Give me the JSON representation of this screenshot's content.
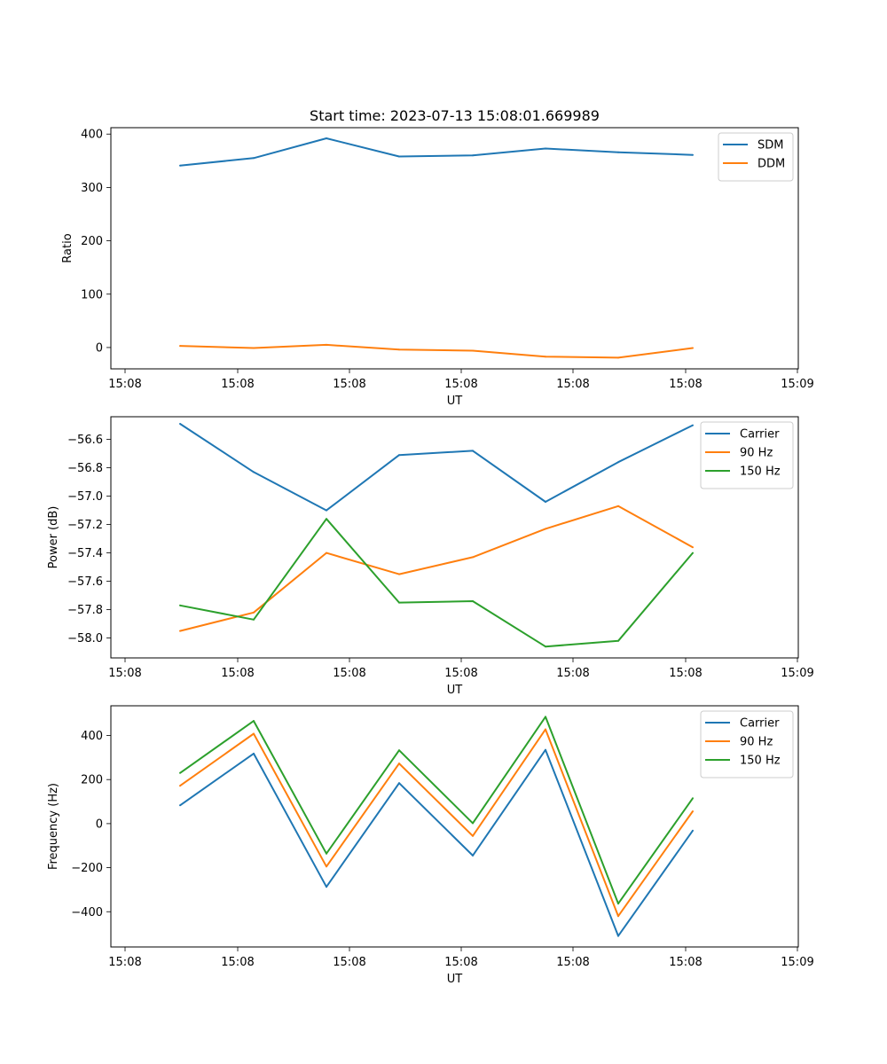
{
  "chart_data": [
    {
      "type": "line",
      "title": "Start time: 2023-07-13 15:08:01.669989",
      "xlabel": "UT",
      "ylabel": "Ratio",
      "x_tick_labels": [
        "15:08",
        "15:08",
        "15:08",
        "15:08",
        "15:08",
        "15:08",
        "15:09"
      ],
      "y_ticks": [
        0,
        100,
        200,
        300,
        400
      ],
      "ylim": [
        -40,
        412
      ],
      "legend_position": "top-right",
      "series": [
        {
          "name": "SDM",
          "color": "#1f77b4",
          "values": [
            341,
            355,
            392,
            358,
            360,
            373,
            366,
            361
          ]
        },
        {
          "name": "DDM",
          "color": "#ff7f0e",
          "values": [
            3,
            -1,
            5,
            -4,
            -6,
            -17,
            -19,
            -1
          ]
        }
      ]
    },
    {
      "type": "line",
      "title": "",
      "xlabel": "UT",
      "ylabel": "Power (dB)",
      "x_tick_labels": [
        "15:08",
        "15:08",
        "15:08",
        "15:08",
        "15:08",
        "15:08",
        "15:09"
      ],
      "y_ticks": [
        -58.0,
        -57.8,
        -57.6,
        -57.4,
        -57.2,
        -57.0,
        -56.8,
        -56.6
      ],
      "ylim": [
        -58.14,
        -56.44
      ],
      "legend_position": "top-right",
      "series": [
        {
          "name": "Carrier",
          "color": "#1f77b4",
          "values": [
            -56.49,
            -56.83,
            -57.1,
            -56.71,
            -56.68,
            -57.04,
            -56.76,
            -56.5
          ]
        },
        {
          "name": "90 Hz",
          "color": "#ff7f0e",
          "values": [
            -57.95,
            -57.82,
            -57.4,
            -57.55,
            -57.43,
            -57.23,
            -57.07,
            -57.36
          ]
        },
        {
          "name": "150 Hz",
          "color": "#2ca02c",
          "values": [
            -57.77,
            -57.87,
            -57.16,
            -57.75,
            -57.74,
            -58.06,
            -58.02,
            -57.4
          ]
        }
      ]
    },
    {
      "type": "line",
      "title": "",
      "xlabel": "UT",
      "ylabel": "Frequency (Hz)",
      "x_tick_labels": [
        "15:08",
        "15:08",
        "15:08",
        "15:08",
        "15:08",
        "15:08",
        "15:09"
      ],
      "y_ticks": [
        -400,
        -200,
        0,
        200,
        400
      ],
      "ylim": [
        -560,
        535
      ],
      "legend_position": "top-right",
      "series": [
        {
          "name": "Carrier",
          "color": "#1f77b4",
          "values": [
            83,
            318,
            -287,
            184,
            -145,
            335,
            -510,
            -32
          ]
        },
        {
          "name": "90 Hz",
          "color": "#ff7f0e",
          "values": [
            172,
            408,
            -195,
            273,
            -56,
            428,
            -420,
            56
          ]
        },
        {
          "name": "150 Hz",
          "color": "#2ca02c",
          "values": [
            230,
            466,
            -136,
            333,
            2,
            485,
            -363,
            115
          ]
        }
      ]
    }
  ]
}
